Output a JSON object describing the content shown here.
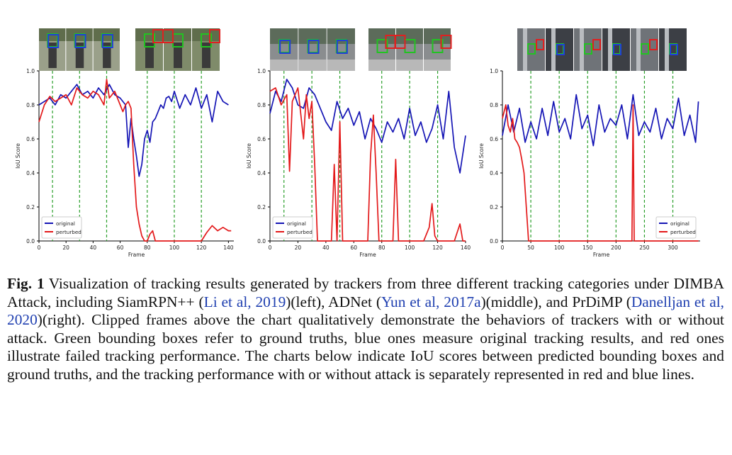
{
  "colors": {
    "original": "#1515b5",
    "perturbed": "#e3191a",
    "frame_marker": "#2ca02c",
    "gt_box": "#22c322",
    "orig_box": "#1f3fd8",
    "fail_box": "#e02020",
    "citation": "#1f3fb0"
  },
  "caption": {
    "label": "Fig. 1",
    "t1": "Visualization of tracking results generated by trackers from three different tracking categories under DIMBA Attack, including SiamRPN++ (",
    "c1": "Li et al, 2019",
    "t2": ")(left), ADNet (",
    "c2": "Yun et al, 2017a",
    "t3": ")(middle), and PrDiMP (",
    "c3": "Danelljan et al, 2020",
    "t4": ")(right). Clipped frames above the chart qualitatively demonstrate the behaviors of trackers with or without attack. Green bounding boxes refer to ground truths, blue ones measure original tracking results, and red ones illustrate failed tracking performance. The charts below indicate IoU scores between predicted bounding boxes and ground truths, and the tracking performance with or without attack is separately represented in red and blue lines."
  },
  "chart_data": [
    {
      "type": "line",
      "title": "",
      "xlabel": "Frame",
      "ylabel": "IoU Score",
      "xlim": [
        0,
        144
      ],
      "ylim": [
        0,
        1.0
      ],
      "xticks": [
        0,
        20,
        40,
        60,
        80,
        100,
        120,
        140
      ],
      "yticks": [
        0.0,
        0.2,
        0.4,
        0.6,
        0.8,
        1.0
      ],
      "frame_markers": [
        10,
        30,
        50,
        80,
        100,
        120
      ],
      "legend": "lower-left",
      "series": [
        {
          "name": "original",
          "x": [
            0,
            4,
            8,
            12,
            16,
            20,
            24,
            28,
            32,
            36,
            40,
            44,
            48,
            52,
            56,
            60,
            64,
            66,
            68,
            70,
            72,
            74,
            76,
            78,
            80,
            82,
            84,
            86,
            88,
            90,
            92,
            94,
            96,
            98,
            100,
            104,
            108,
            112,
            116,
            120,
            124,
            128,
            132,
            136,
            140
          ],
          "values": [
            0.8,
            0.82,
            0.84,
            0.8,
            0.86,
            0.84,
            0.88,
            0.92,
            0.86,
            0.88,
            0.84,
            0.9,
            0.86,
            0.92,
            0.86,
            0.84,
            0.8,
            0.55,
            0.72,
            0.6,
            0.5,
            0.38,
            0.45,
            0.6,
            0.65,
            0.58,
            0.7,
            0.72,
            0.76,
            0.8,
            0.78,
            0.84,
            0.85,
            0.82,
            0.88,
            0.78,
            0.86,
            0.8,
            0.9,
            0.78,
            0.86,
            0.7,
            0.88,
            0.82,
            0.8
          ]
        },
        {
          "name": "perturbed",
          "x": [
            0,
            4,
            8,
            12,
            16,
            20,
            24,
            28,
            32,
            36,
            40,
            44,
            48,
            50,
            52,
            56,
            60,
            62,
            64,
            66,
            68,
            70,
            72,
            74,
            76,
            78,
            80,
            82,
            84,
            86,
            90,
            100,
            110,
            116,
            120,
            124,
            128,
            132,
            136,
            140,
            142
          ],
          "values": [
            0.7,
            0.8,
            0.85,
            0.82,
            0.84,
            0.86,
            0.8,
            0.9,
            0.86,
            0.84,
            0.88,
            0.86,
            0.8,
            0.95,
            0.84,
            0.88,
            0.8,
            0.76,
            0.8,
            0.82,
            0.78,
            0.45,
            0.2,
            0.1,
            0.03,
            0.0,
            0.0,
            0.04,
            0.06,
            0.0,
            0.0,
            0.0,
            0.0,
            0.0,
            0.0,
            0.05,
            0.09,
            0.06,
            0.08,
            0.06,
            0.06
          ]
        }
      ]
    },
    {
      "type": "line",
      "title": "",
      "xlabel": "Frame",
      "ylabel": "IoU Score",
      "xlim": [
        0,
        140
      ],
      "ylim": [
        0,
        1.0
      ],
      "xticks": [
        0,
        20,
        40,
        60,
        80,
        100,
        120,
        140
      ],
      "yticks": [
        0.0,
        0.2,
        0.4,
        0.6,
        0.8,
        1.0
      ],
      "frame_markers": [
        10,
        30,
        50,
        80,
        100,
        120
      ],
      "legend": "lower-left",
      "series": [
        {
          "name": "original",
          "x": [
            0,
            4,
            8,
            12,
            16,
            20,
            24,
            28,
            32,
            36,
            40,
            44,
            48,
            52,
            56,
            60,
            64,
            68,
            72,
            76,
            80,
            84,
            88,
            92,
            96,
            100,
            104,
            108,
            112,
            116,
            120,
            124,
            128,
            132,
            136,
            140
          ],
          "values": [
            0.75,
            0.88,
            0.82,
            0.95,
            0.9,
            0.8,
            0.78,
            0.9,
            0.86,
            0.78,
            0.7,
            0.65,
            0.82,
            0.72,
            0.78,
            0.68,
            0.76,
            0.6,
            0.72,
            0.66,
            0.58,
            0.7,
            0.64,
            0.72,
            0.6,
            0.78,
            0.62,
            0.7,
            0.58,
            0.66,
            0.8,
            0.6,
            0.88,
            0.55,
            0.4,
            0.62
          ]
        },
        {
          "name": "perturbed",
          "x": [
            0,
            4,
            8,
            12,
            14,
            16,
            20,
            24,
            26,
            28,
            30,
            32,
            34,
            36,
            44,
            46,
            48,
            50,
            52,
            54,
            60,
            66,
            70,
            72,
            74,
            76,
            78,
            80,
            84,
            88,
            90,
            92,
            94,
            96,
            100,
            104,
            110,
            114,
            116,
            118,
            120,
            124,
            132,
            136,
            138,
            140
          ],
          "values": [
            0.88,
            0.9,
            0.8,
            0.86,
            0.41,
            0.82,
            0.9,
            0.6,
            0.86,
            0.72,
            0.82,
            0.45,
            0.0,
            0.0,
            0.0,
            0.45,
            0.0,
            0.7,
            0.0,
            0.0,
            0.0,
            0.0,
            0.0,
            0.5,
            0.74,
            0.4,
            0.0,
            0.0,
            0.0,
            0.0,
            0.48,
            0.0,
            0.0,
            0.0,
            0.0,
            0.0,
            0.0,
            0.08,
            0.22,
            0.03,
            0.0,
            0.0,
            0.0,
            0.1,
            0.0,
            0.0
          ]
        }
      ]
    },
    {
      "type": "line",
      "title": "",
      "xlabel": "Frame",
      "ylabel": "IoU Score",
      "xlim": [
        0,
        348
      ],
      "ylim": [
        0,
        1.0
      ],
      "xticks": [
        0,
        50,
        100,
        150,
        200,
        250,
        300
      ],
      "yticks": [
        0.0,
        0.2,
        0.4,
        0.6,
        0.8,
        1.0
      ],
      "frame_markers": [
        50,
        100,
        150,
        200,
        250,
        300
      ],
      "legend": "lower-right",
      "series": [
        {
          "name": "original",
          "x": [
            0,
            10,
            20,
            30,
            40,
            50,
            60,
            70,
            80,
            90,
            100,
            110,
            120,
            130,
            140,
            150,
            160,
            170,
            180,
            190,
            200,
            210,
            220,
            230,
            240,
            250,
            260,
            270,
            280,
            290,
            300,
            310,
            320,
            330,
            340,
            345
          ],
          "values": [
            0.62,
            0.8,
            0.64,
            0.78,
            0.58,
            0.7,
            0.6,
            0.78,
            0.62,
            0.82,
            0.64,
            0.72,
            0.6,
            0.86,
            0.66,
            0.74,
            0.56,
            0.8,
            0.64,
            0.72,
            0.68,
            0.8,
            0.6,
            0.86,
            0.62,
            0.7,
            0.64,
            0.78,
            0.6,
            0.72,
            0.66,
            0.84,
            0.62,
            0.74,
            0.58,
            0.82
          ]
        },
        {
          "name": "perturbed",
          "x": [
            0,
            6,
            10,
            14,
            18,
            22,
            26,
            30,
            34,
            38,
            42,
            46,
            50,
            60,
            100,
            150,
            200,
            228,
            230,
            232,
            236,
            240,
            300,
            345
          ],
          "values": [
            0.72,
            0.8,
            0.68,
            0.64,
            0.72,
            0.6,
            0.58,
            0.55,
            0.48,
            0.4,
            0.2,
            0.0,
            0.0,
            0.0,
            0.0,
            0.0,
            0.0,
            0.0,
            0.8,
            0.0,
            0.0,
            0.0,
            0.0,
            0.0
          ]
        }
      ]
    }
  ]
}
